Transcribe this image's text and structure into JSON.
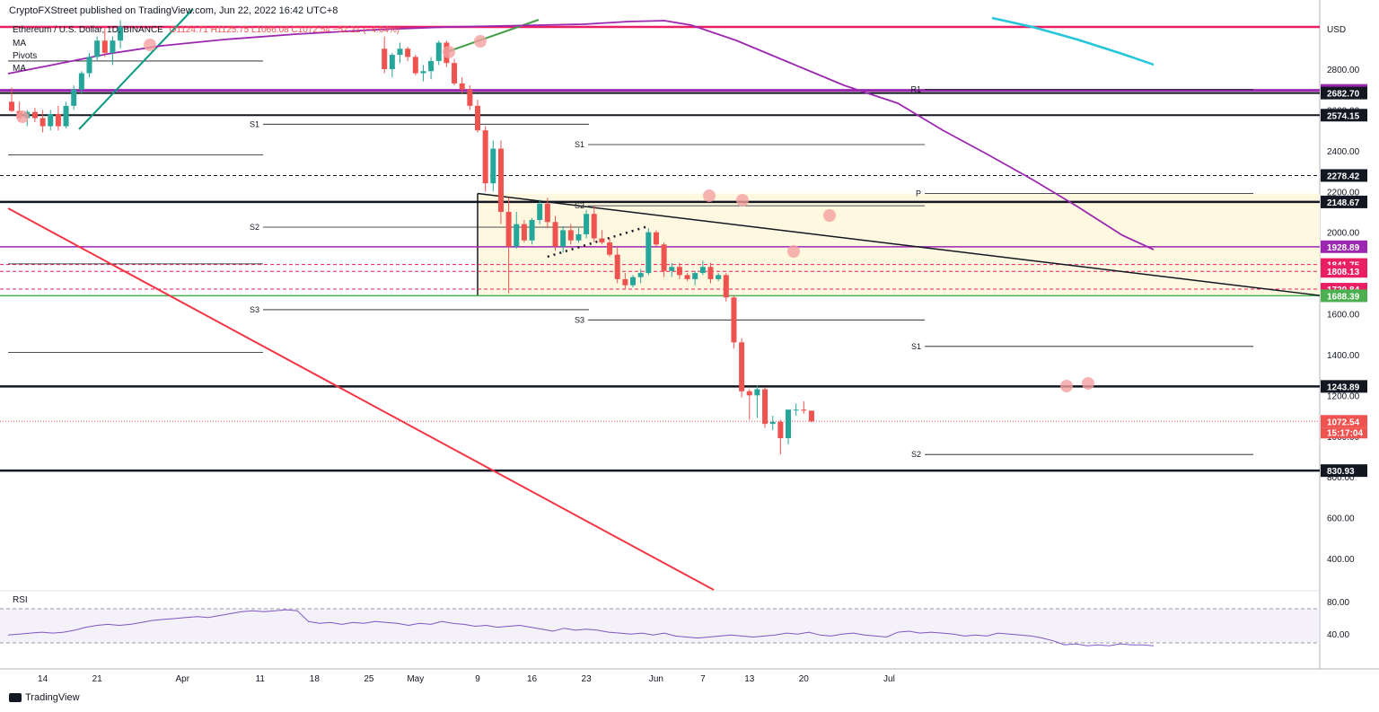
{
  "header": {
    "published": "CryptoFXStreet published on TradingView.com, Jun 22, 2022 16:42 UTC+8",
    "symbol_line": "Ethereum / U.S. Dollar, 1D, BINANCE",
    "ohlc": "O1124.71  H1125.75  L1066.08  C1072.54  −52.21 (−4.64%)"
  },
  "legend": {
    "items": [
      "MA",
      "Pivots",
      "MA"
    ]
  },
  "currency_label": "USD",
  "rsi_label": "RSI",
  "footer_brand": "TradingView",
  "colors": {
    "up": "#26a69a",
    "down": "#ef5350",
    "ma_purple": "#9c27b0",
    "ma_cyan": "#26c6da",
    "pink": "#e91e63",
    "green_level": "#4caf50"
  },
  "chart_data": {
    "type": "candlestick",
    "title": "Ethereum / U.S. Dollar, 1D, BINANCE",
    "y_axis": {
      "ticks": [
        400,
        600,
        800,
        1000,
        1200,
        1400,
        1600,
        1800,
        2000,
        2200,
        2400,
        2600,
        2800
      ],
      "range": [
        400,
        2850
      ]
    },
    "x_axis": {
      "ticks": [
        "14",
        "21",
        "Apr",
        "11",
        "18",
        "25",
        "May",
        "9",
        "16",
        "23",
        "Jun",
        "7",
        "13",
        "20",
        "Jul"
      ]
    },
    "candles": [
      {
        "o": 2640,
        "h": 2710,
        "l": 2590,
        "c": 2595
      },
      {
        "o": 2595,
        "h": 2640,
        "l": 2540,
        "c": 2560
      },
      {
        "o": 2560,
        "h": 2600,
        "l": 2520,
        "c": 2590
      },
      {
        "o": 2590,
        "h": 2610,
        "l": 2540,
        "c": 2560
      },
      {
        "o": 2560,
        "h": 2600,
        "l": 2490,
        "c": 2520
      },
      {
        "o": 2520,
        "h": 2600,
        "l": 2500,
        "c": 2580
      },
      {
        "o": 2580,
        "h": 2620,
        "l": 2500,
        "c": 2520
      },
      {
        "o": 2520,
        "h": 2640,
        "l": 2510,
        "c": 2620
      },
      {
        "o": 2620,
        "h": 2720,
        "l": 2600,
        "c": 2700
      },
      {
        "o": 2700,
        "h": 2790,
        "l": 2680,
        "c": 2780
      },
      {
        "o": 2780,
        "h": 2880,
        "l": 2760,
        "c": 2860
      },
      {
        "o": 2860,
        "h": 2960,
        "l": 2840,
        "c": 2940
      },
      {
        "o": 2940,
        "h": 3000,
        "l": 2860,
        "c": 2880
      },
      {
        "o": 2880,
        "h": 2960,
        "l": 2820,
        "c": 2940
      },
      {
        "o": 2940,
        "h": 3040,
        "l": 2900,
        "c": 3010
      }
    ],
    "candles_may_jun": [
      {
        "o": 2900,
        "h": 2960,
        "l": 2780,
        "c": 2800
      },
      {
        "o": 2800,
        "h": 2880,
        "l": 2760,
        "c": 2870
      },
      {
        "o": 2870,
        "h": 2930,
        "l": 2830,
        "c": 2900
      },
      {
        "o": 2900,
        "h": 2910,
        "l": 2840,
        "c": 2860
      },
      {
        "o": 2860,
        "h": 2870,
        "l": 2770,
        "c": 2780
      },
      {
        "o": 2780,
        "h": 2820,
        "l": 2740,
        "c": 2790
      },
      {
        "o": 2790,
        "h": 2860,
        "l": 2750,
        "c": 2840
      },
      {
        "o": 2840,
        "h": 2940,
        "l": 2820,
        "c": 2930
      },
      {
        "o": 2930,
        "h": 2940,
        "l": 2810,
        "c": 2830
      },
      {
        "o": 2830,
        "h": 2850,
        "l": 2720,
        "c": 2730
      },
      {
        "o": 2730,
        "h": 2760,
        "l": 2680,
        "c": 2700
      },
      {
        "o": 2700,
        "h": 2720,
        "l": 2600,
        "c": 2620
      },
      {
        "o": 2620,
        "h": 2650,
        "l": 2490,
        "c": 2500
      },
      {
        "o": 2500,
        "h": 2520,
        "l": 2200,
        "c": 2240
      },
      {
        "o": 2240,
        "h": 2450,
        "l": 2200,
        "c": 2410
      },
      {
        "o": 2410,
        "h": 2450,
        "l": 2040,
        "c": 2100
      },
      {
        "o": 2100,
        "h": 2170,
        "l": 1700,
        "c": 1930
      },
      {
        "o": 1930,
        "h": 2100,
        "l": 1920,
        "c": 2040
      },
      {
        "o": 2040,
        "h": 2060,
        "l": 1950,
        "c": 1960
      },
      {
        "o": 1960,
        "h": 2070,
        "l": 1940,
        "c": 2060
      },
      {
        "o": 2060,
        "h": 2160,
        "l": 2040,
        "c": 2140
      },
      {
        "o": 2140,
        "h": 2170,
        "l": 2020,
        "c": 2050
      },
      {
        "o": 2050,
        "h": 2080,
        "l": 1910,
        "c": 1930
      },
      {
        "o": 1930,
        "h": 2030,
        "l": 1900,
        "c": 2010
      },
      {
        "o": 2010,
        "h": 2040,
        "l": 1940,
        "c": 1960
      },
      {
        "o": 1960,
        "h": 2020,
        "l": 1950,
        "c": 1990
      },
      {
        "o": 1990,
        "h": 2110,
        "l": 1970,
        "c": 2090
      },
      {
        "o": 2090,
        "h": 2130,
        "l": 1950,
        "c": 1970
      },
      {
        "o": 1970,
        "h": 2010,
        "l": 1940,
        "c": 1950
      },
      {
        "o": 1950,
        "h": 1970,
        "l": 1880,
        "c": 1890
      },
      {
        "o": 1890,
        "h": 1930,
        "l": 1750,
        "c": 1770
      },
      {
        "o": 1770,
        "h": 1800,
        "l": 1720,
        "c": 1740
      },
      {
        "o": 1740,
        "h": 1790,
        "l": 1730,
        "c": 1780
      },
      {
        "o": 1780,
        "h": 1820,
        "l": 1750,
        "c": 1800
      },
      {
        "o": 1800,
        "h": 2020,
        "l": 1790,
        "c": 2000
      },
      {
        "o": 2000,
        "h": 2010,
        "l": 1930,
        "c": 1940
      },
      {
        "o": 1940,
        "h": 1950,
        "l": 1780,
        "c": 1810
      },
      {
        "o": 1810,
        "h": 1850,
        "l": 1780,
        "c": 1830
      },
      {
        "o": 1830,
        "h": 1850,
        "l": 1770,
        "c": 1790
      },
      {
        "o": 1790,
        "h": 1800,
        "l": 1760,
        "c": 1770
      },
      {
        "o": 1770,
        "h": 1810,
        "l": 1740,
        "c": 1800
      },
      {
        "o": 1800,
        "h": 1860,
        "l": 1790,
        "c": 1830
      },
      {
        "o": 1830,
        "h": 1850,
        "l": 1750,
        "c": 1770
      },
      {
        "o": 1770,
        "h": 1800,
        "l": 1760,
        "c": 1790
      },
      {
        "o": 1790,
        "h": 1800,
        "l": 1660,
        "c": 1680
      },
      {
        "o": 1680,
        "h": 1690,
        "l": 1430,
        "c": 1460
      },
      {
        "o": 1460,
        "h": 1480,
        "l": 1190,
        "c": 1220
      },
      {
        "o": 1220,
        "h": 1230,
        "l": 1080,
        "c": 1200
      },
      {
        "o": 1200,
        "h": 1250,
        "l": 1090,
        "c": 1230
      },
      {
        "o": 1230,
        "h": 1240,
        "l": 1040,
        "c": 1060
      },
      {
        "o": 1060,
        "h": 1100,
        "l": 1030,
        "c": 1070
      },
      {
        "o": 1070,
        "h": 1080,
        "l": 910,
        "c": 990
      },
      {
        "o": 990,
        "h": 1130,
        "l": 960,
        "c": 1130
      },
      {
        "o": 1130,
        "h": 1160,
        "l": 1100,
        "c": 1130
      },
      {
        "o": 1130,
        "h": 1170,
        "l": 1110,
        "c": 1125
      },
      {
        "o": 1124.71,
        "h": 1125.75,
        "l": 1066.08,
        "c": 1072.54
      }
    ],
    "levels": [
      {
        "label": "2695.79",
        "value": 2695.79,
        "color": "#9c27b0"
      },
      {
        "label": "2682.70",
        "value": 2682.7,
        "color": "#131722"
      },
      {
        "label": "2574.15",
        "value": 2574.15,
        "color": "#131722"
      },
      {
        "label": "2278.42",
        "value": 2278.42,
        "color": "#131722"
      },
      {
        "label": "2148.67",
        "value": 2148.67,
        "color": "#131722"
      },
      {
        "label": "1928.89",
        "value": 1928.89,
        "color": "#9c27b0"
      },
      {
        "label": "1841.75",
        "value": 1841.75,
        "color": "#e91e63"
      },
      {
        "label": "1808.13",
        "value": 1808.13,
        "color": "#e91e63"
      },
      {
        "label": "1720.84",
        "value": 1720.84,
        "color": "#e91e63"
      },
      {
        "label": "1688.39",
        "value": 1688.39,
        "color": "#4caf50"
      },
      {
        "label": "1243.89",
        "value": 1243.89,
        "color": "#131722"
      },
      {
        "label": "1072.54",
        "value": 1072.54,
        "color": "#ef5350"
      },
      {
        "label": "830.93",
        "value": 830.93,
        "color": "#131722"
      }
    ],
    "countdown": "15:17:04",
    "pivots": [
      "S1",
      "S1",
      "S2",
      "S2",
      "S3",
      "S3",
      "R1",
      "P",
      "S1",
      "S2"
    ],
    "rsi": {
      "ticks": [
        80,
        40
      ],
      "values": [
        28,
        29,
        30,
        31,
        30,
        31,
        33,
        36,
        38,
        39,
        38,
        39,
        41,
        43,
        44,
        45,
        46,
        47,
        46,
        48,
        50,
        52,
        53,
        52,
        53,
        54,
        53,
        42,
        40,
        41,
        39,
        41,
        40,
        42,
        41,
        40,
        38,
        40,
        39,
        42,
        40,
        39,
        37,
        38,
        36,
        37,
        38,
        36,
        34,
        32,
        35,
        33,
        34,
        33,
        31,
        30,
        29,
        30,
        28,
        30,
        27,
        26,
        25,
        26,
        27,
        28,
        27,
        26,
        27,
        28,
        30,
        29,
        31,
        28,
        27,
        29,
        30,
        28,
        27,
        26,
        31,
        32,
        30,
        31,
        30,
        29,
        27,
        28,
        27,
        30,
        29,
        28,
        27,
        25,
        22,
        18,
        19,
        17,
        18,
        17,
        19,
        18,
        18,
        17
      ]
    }
  }
}
